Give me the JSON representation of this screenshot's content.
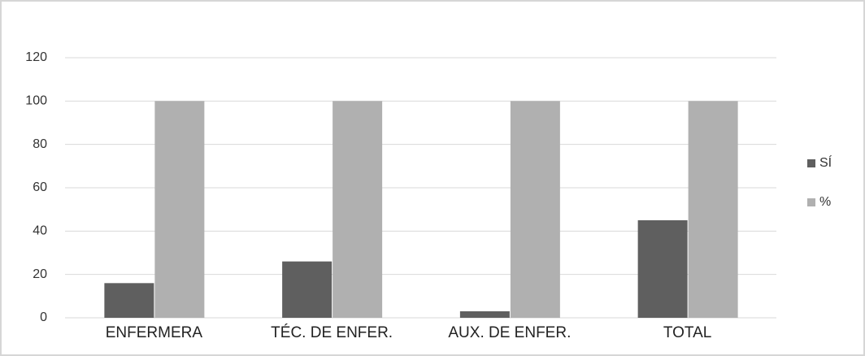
{
  "chart_data": {
    "type": "bar",
    "categories": [
      "ENFERMERA",
      "TÉC. DE ENFER.",
      "AUX. DE ENFER.",
      "TOTAL"
    ],
    "series": [
      {
        "name": "SÍ",
        "color": "#5f5f5f",
        "values": [
          16,
          26,
          3,
          45
        ]
      },
      {
        "name": "%",
        "color": "#b0b0b0",
        "values": [
          100,
          100,
          100,
          100
        ]
      }
    ],
    "ylim": [
      0,
      120
    ],
    "yticks": [
      0,
      20,
      40,
      60,
      80,
      100,
      120
    ],
    "grid": true,
    "legend": "right"
  }
}
